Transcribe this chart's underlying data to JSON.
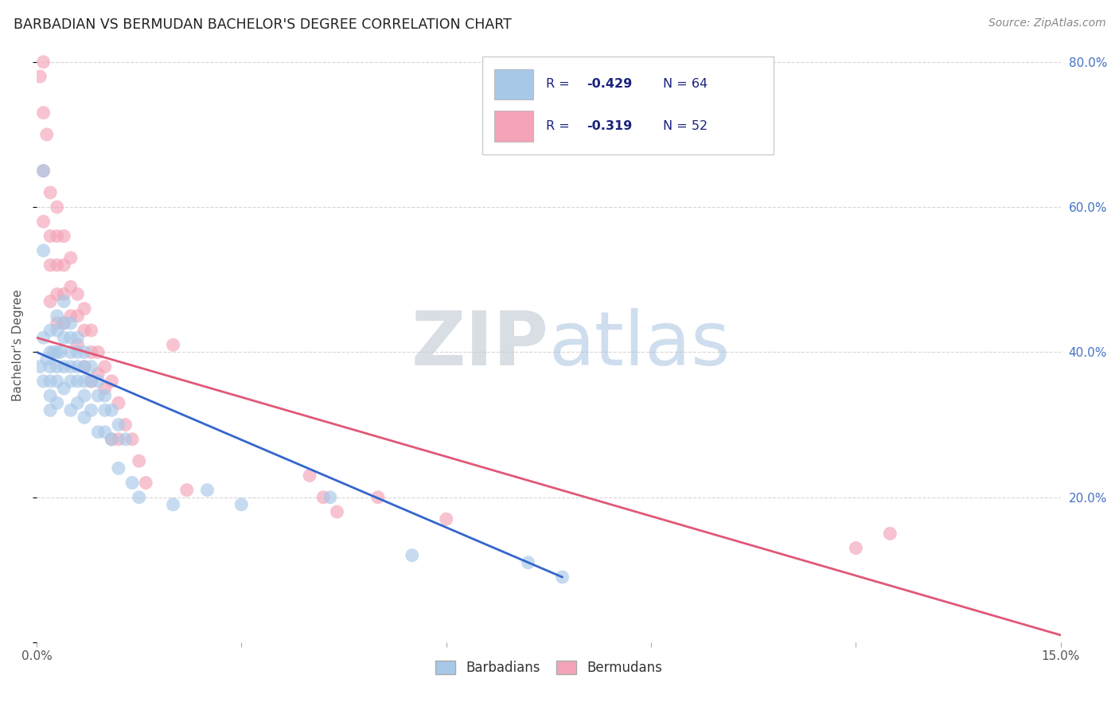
{
  "title": "BARBADIAN VS BERMUDAN BACHELOR'S DEGREE CORRELATION CHART",
  "source": "Source: ZipAtlas.com",
  "ylabel": "Bachelor's Degree",
  "xlim": [
    0.0,
    0.15
  ],
  "ylim": [
    0.0,
    0.82
  ],
  "xticks": [
    0.0,
    0.03,
    0.06,
    0.09,
    0.12,
    0.15
  ],
  "yticks": [
    0.0,
    0.2,
    0.4,
    0.6,
    0.8
  ],
  "blue_color": "#a8c8e8",
  "pink_color": "#f4a4b8",
  "blue_line_color": "#3366cc",
  "pink_line_color": "#e05878",
  "blue_label": "Barbadians",
  "pink_label": "Bermudans",
  "legend_text_color": "#1a237e",
  "background_color": "#ffffff",
  "grid_color": "#cccccc",
  "right_axis_color": "#4472C4",
  "blue_scatter_x": [
    0.0005,
    0.001,
    0.001,
    0.001,
    0.001,
    0.0015,
    0.002,
    0.002,
    0.002,
    0.002,
    0.002,
    0.002,
    0.0025,
    0.003,
    0.003,
    0.003,
    0.003,
    0.003,
    0.003,
    0.0035,
    0.004,
    0.004,
    0.004,
    0.004,
    0.004,
    0.005,
    0.005,
    0.005,
    0.005,
    0.005,
    0.005,
    0.006,
    0.006,
    0.006,
    0.006,
    0.006,
    0.007,
    0.007,
    0.007,
    0.007,
    0.007,
    0.008,
    0.008,
    0.008,
    0.009,
    0.009,
    0.009,
    0.01,
    0.01,
    0.01,
    0.011,
    0.011,
    0.012,
    0.012,
    0.013,
    0.014,
    0.015,
    0.02,
    0.025,
    0.03,
    0.043,
    0.055,
    0.072,
    0.077
  ],
  "blue_scatter_y": [
    0.38,
    0.65,
    0.54,
    0.42,
    0.36,
    0.39,
    0.43,
    0.4,
    0.38,
    0.36,
    0.34,
    0.32,
    0.4,
    0.45,
    0.43,
    0.4,
    0.38,
    0.36,
    0.33,
    0.4,
    0.47,
    0.44,
    0.42,
    0.38,
    0.35,
    0.44,
    0.42,
    0.4,
    0.38,
    0.36,
    0.32,
    0.42,
    0.4,
    0.38,
    0.36,
    0.33,
    0.4,
    0.38,
    0.36,
    0.34,
    0.31,
    0.38,
    0.36,
    0.32,
    0.36,
    0.34,
    0.29,
    0.34,
    0.32,
    0.29,
    0.32,
    0.28,
    0.3,
    0.24,
    0.28,
    0.22,
    0.2,
    0.19,
    0.21,
    0.19,
    0.2,
    0.12,
    0.11,
    0.09
  ],
  "pink_scatter_x": [
    0.0005,
    0.001,
    0.001,
    0.001,
    0.001,
    0.0015,
    0.002,
    0.002,
    0.002,
    0.002,
    0.003,
    0.003,
    0.003,
    0.003,
    0.003,
    0.004,
    0.004,
    0.004,
    0.004,
    0.005,
    0.005,
    0.005,
    0.006,
    0.006,
    0.006,
    0.007,
    0.007,
    0.007,
    0.008,
    0.008,
    0.008,
    0.009,
    0.009,
    0.01,
    0.01,
    0.011,
    0.011,
    0.012,
    0.012,
    0.013,
    0.014,
    0.015,
    0.016,
    0.02,
    0.022,
    0.04,
    0.042,
    0.044,
    0.05,
    0.06,
    0.12,
    0.125
  ],
  "pink_scatter_y": [
    0.78,
    0.8,
    0.73,
    0.65,
    0.58,
    0.7,
    0.62,
    0.56,
    0.52,
    0.47,
    0.6,
    0.56,
    0.52,
    0.48,
    0.44,
    0.56,
    0.52,
    0.48,
    0.44,
    0.53,
    0.49,
    0.45,
    0.48,
    0.45,
    0.41,
    0.46,
    0.43,
    0.38,
    0.43,
    0.4,
    0.36,
    0.4,
    0.37,
    0.38,
    0.35,
    0.36,
    0.28,
    0.33,
    0.28,
    0.3,
    0.28,
    0.25,
    0.22,
    0.41,
    0.21,
    0.23,
    0.2,
    0.18,
    0.2,
    0.17,
    0.13,
    0.15
  ],
  "blue_line_x0": 0.0,
  "blue_line_x1": 0.077,
  "blue_line_y0": 0.4,
  "blue_line_y1": 0.09,
  "pink_line_x0": 0.0,
  "pink_line_x1": 0.15,
  "pink_line_y0": 0.42,
  "pink_line_y1": 0.01
}
